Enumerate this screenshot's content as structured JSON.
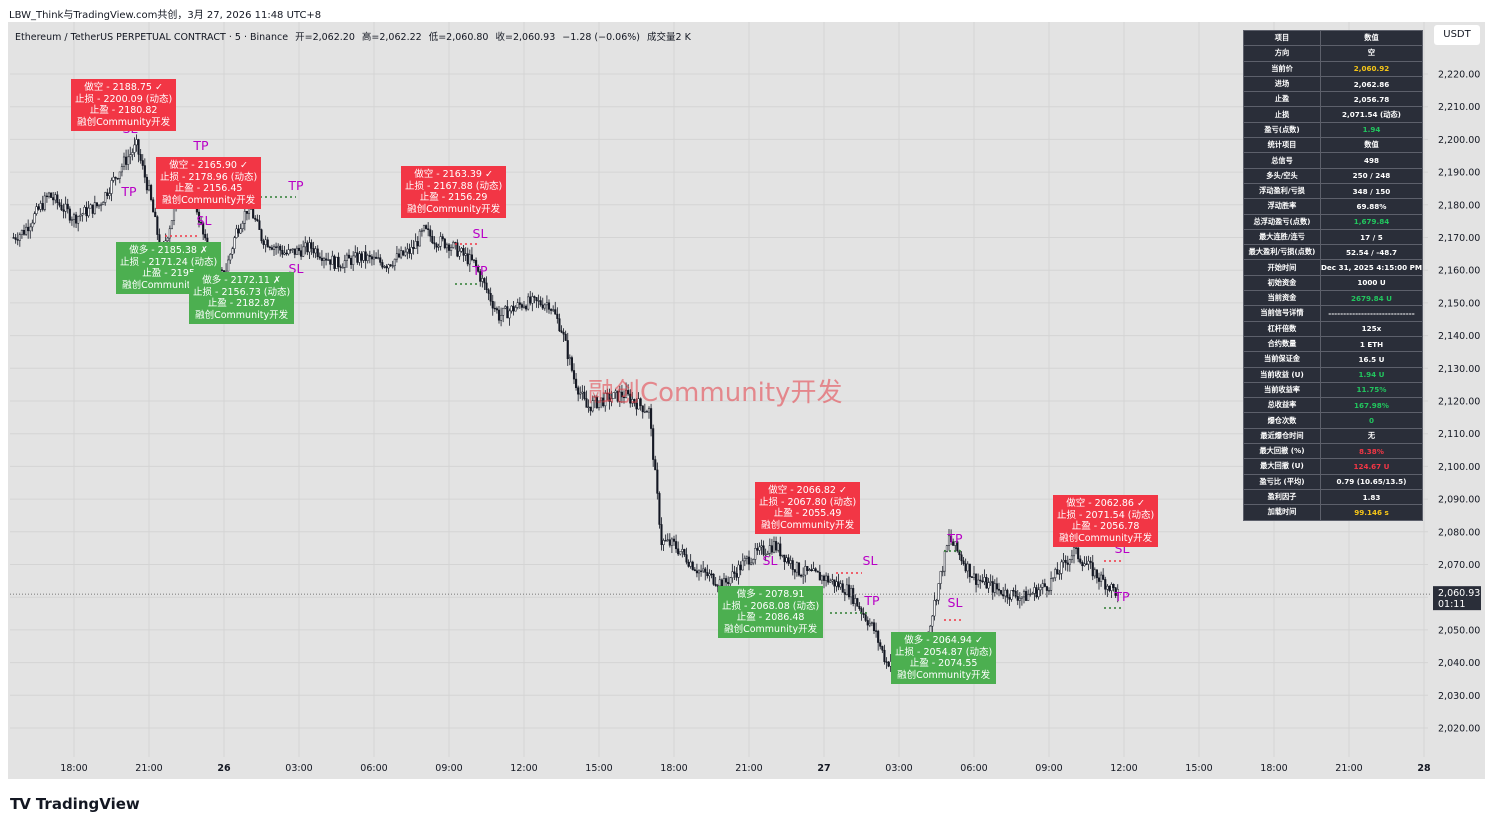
{
  "header": {
    "source_line": "LBW_Think与TradingView.com共创，3月 27, 2026 11:48 UTC+8"
  },
  "symbol": {
    "name": "Ethereum / TetherUS PERPETUAL CONTRACT · 5 · Binance",
    "open": "开=2,062.20",
    "high": "高=2,062.22",
    "low": "低=2,060.80",
    "close": "收=2,060.93",
    "change": "−1.28 (−0.06%)",
    "volume": "成交量2 K"
  },
  "currency_button": "USDT",
  "watermark": "融创Community开发",
  "brand": {
    "name": "TradingView",
    "logo": "TV"
  },
  "colors": {
    "up": "#089981",
    "down": "#f23645",
    "long_box": "#4caf50",
    "short_box": "#f23645",
    "tp_sl": "#b800c6"
  },
  "stats_table": [
    [
      "项目",
      "数值",
      ""
    ],
    [
      "方向",
      "空",
      ""
    ],
    [
      "当前价",
      "2,060.92",
      "#f5c518"
    ],
    [
      "进场",
      "2,062.86",
      ""
    ],
    [
      "止盈",
      "2,056.78",
      ""
    ],
    [
      "止损",
      "2,071.54 (动态)",
      ""
    ],
    [
      "盈亏(点数)",
      "1.94",
      "#22c55e"
    ],
    [
      "统计项目",
      "数值",
      ""
    ],
    [
      "总信号",
      "498",
      ""
    ],
    [
      "多头/空头",
      "250 / 248",
      ""
    ],
    [
      "浮动盈利/亏损",
      "348 / 150",
      ""
    ],
    [
      "浮动胜率",
      "69.88%",
      ""
    ],
    [
      "总浮动盈亏(点数)",
      "1,679.84",
      "#22c55e"
    ],
    [
      "最大连胜/连亏",
      "17 / 5",
      ""
    ],
    [
      "最大盈利/亏损(点数)",
      "52.54 / -48.7",
      ""
    ],
    [
      "开始时间",
      "Dec 31, 2025 4:15:00 PM",
      ""
    ],
    [
      "初始资金",
      "1000 U",
      ""
    ],
    [
      "当前资金",
      "2679.84 U",
      "#22c55e"
    ],
    [
      "当前信号详情",
      "-----------------------------",
      ""
    ],
    [
      "杠杆倍数",
      "125x",
      ""
    ],
    [
      "合约数量",
      "1 ETH",
      ""
    ],
    [
      "当前保证金",
      "16.5 U",
      ""
    ],
    [
      "当前收益 (U)",
      "1.94 U",
      "#22c55e"
    ],
    [
      "当前收益率",
      "11.75%",
      "#22c55e"
    ],
    [
      "总收益率",
      "167.98%",
      "#22c55e"
    ],
    [
      "爆仓次数",
      "0",
      "#22c55e"
    ],
    [
      "最近爆仓时间",
      "无",
      ""
    ],
    [
      "最大回撤 (%)",
      "8.38%",
      "#f23645"
    ],
    [
      "最大回撤 (U)",
      "124.67 U",
      "#f23645"
    ],
    [
      "盈亏比 (平均)",
      "0.79 (10.65/13.5)",
      ""
    ],
    [
      "盈利因子",
      "1.83",
      ""
    ],
    [
      "加载时间",
      "99.146 s",
      "#f5c518"
    ]
  ],
  "trade_boxes": [
    {
      "type": "short",
      "lines": [
        "做空 - 2188.75 ✓",
        "止损 - 2200.09 (动态)",
        "止盈 - 2180.82",
        "融创Community开发"
      ]
    },
    {
      "type": "short",
      "lines": [
        "做空 - 2165.90 ✓",
        "止损 - 2178.96 (动态)",
        "止盈 - 2156.45",
        "融创Community开发"
      ]
    },
    {
      "type": "long",
      "lines": [
        "做多 - 2185.38 ✗",
        "止损 - 2171.24 (动态)",
        "止盈 - 2195",
        "融创Community开发"
      ]
    },
    {
      "type": "long",
      "lines": [
        "做多 - 2172.11 ✗",
        "止损 - 2156.73 (动态)",
        "止盈 - 2182.87",
        "融创Community开发"
      ]
    },
    {
      "type": "short",
      "lines": [
        "做空 - 2163.39 ✓",
        "止损 - 2167.88 (动态)",
        "止盈 - 2156.29",
        "融创Community开发"
      ]
    },
    {
      "type": "short",
      "lines": [
        "做空 - 2066.82 ✓",
        "止损 - 2067.80 (动态)",
        "止盈 - 2055.49",
        "融创Community开发"
      ]
    },
    {
      "type": "long",
      "lines": [
        "做多 - 2078.91",
        "止损 - 2068.08 (动态)",
        "止盈 - 2086.48",
        "融创Community开发"
      ]
    },
    {
      "type": "long",
      "lines": [
        "做多 - 2064.94 ✓",
        "止损 - 2054.87 (动态)",
        "止盈 - 2074.55",
        "融创Community开发"
      ]
    },
    {
      "type": "short",
      "lines": [
        "做空 - 2062.86 ✓",
        "止损 - 2071.54 (动态)",
        "止盈 - 2056.78",
        "融创Community开发"
      ]
    }
  ],
  "chart_data": {
    "type": "line",
    "title": "Ethereum / TetherUS PERPETUAL CONTRACT · 5 · Binance",
    "x_ticks": [
      "18:00",
      "21:00",
      "26",
      "03:00",
      "06:00",
      "09:00",
      "12:00",
      "15:00",
      "18:00",
      "21:00",
      "27",
      "03:00",
      "06:00",
      "09:00",
      "12:00",
      "15:00",
      "18:00",
      "21:00",
      "28"
    ],
    "y_ticks": [
      "2,220.00",
      "2,210.00",
      "2,200.00",
      "2,190.00",
      "2,180.00",
      "2,170.00",
      "2,160.00",
      "2,150.00",
      "2,140.00",
      "2,130.00",
      "2,120.00",
      "2,110.00",
      "2,100.00",
      "2,090.00",
      "2,080.00",
      "2,070.00",
      "2,060.00",
      "2,050.00",
      "2,040.00",
      "2,030.00",
      "2,020.00"
    ],
    "ylim": [
      2014,
      2226
    ],
    "last_price_label": "2,060.93",
    "countdown_label": "01:11",
    "markers_tp": "TP",
    "markers_sl": "SL",
    "price_path": [
      {
        "x": "25 15:35",
        "y": 2170
      },
      {
        "x": "25 16:00",
        "y": 2172
      },
      {
        "x": "25 17:00",
        "y": 2183
      },
      {
        "x": "25 18:00",
        "y": 2176
      },
      {
        "x": "25 19:00",
        "y": 2180
      },
      {
        "x": "25 20:00",
        "y": 2193
      },
      {
        "x": "25 20:30",
        "y": 2198
      },
      {
        "x": "25 21:00",
        "y": 2184
      },
      {
        "x": "25 21:30",
        "y": 2165
      },
      {
        "x": "25 22:00",
        "y": 2178
      },
      {
        "x": "25 22:30",
        "y": 2192
      },
      {
        "x": "25 23:00",
        "y": 2176
      },
      {
        "x": "25 23:30",
        "y": 2160
      },
      {
        "x": "26 00:00",
        "y": 2158
      },
      {
        "x": "26 00:30",
        "y": 2172
      },
      {
        "x": "26 01:00",
        "y": 2180
      },
      {
        "x": "26 01:30",
        "y": 2170
      },
      {
        "x": "26 02:30",
        "y": 2165
      },
      {
        "x": "26 03:30",
        "y": 2167
      },
      {
        "x": "26 04:30",
        "y": 2162
      },
      {
        "x": "26 05:30",
        "y": 2164
      },
      {
        "x": "26 06:30",
        "y": 2162
      },
      {
        "x": "26 07:30",
        "y": 2166
      },
      {
        "x": "26 08:00",
        "y": 2172
      },
      {
        "x": "26 08:30",
        "y": 2169
      },
      {
        "x": "26 09:00",
        "y": 2168
      },
      {
        "x": "26 10:00",
        "y": 2162
      },
      {
        "x": "26 11:00",
        "y": 2146
      },
      {
        "x": "26 12:00",
        "y": 2150
      },
      {
        "x": "26 13:00",
        "y": 2150
      },
      {
        "x": "26 13:30",
        "y": 2142
      },
      {
        "x": "26 14:00",
        "y": 2127
      },
      {
        "x": "26 14:30",
        "y": 2118
      },
      {
        "x": "26 15:00",
        "y": 2120
      },
      {
        "x": "26 16:00",
        "y": 2122
      },
      {
        "x": "26 17:00",
        "y": 2117
      },
      {
        "x": "26 17:30",
        "y": 2077
      },
      {
        "x": "26 18:00",
        "y": 2076
      },
      {
        "x": "26 19:00",
        "y": 2068
      },
      {
        "x": "26 20:00",
        "y": 2064
      },
      {
        "x": "26 21:00",
        "y": 2072
      },
      {
        "x": "26 22:00",
        "y": 2076
      },
      {
        "x": "26 23:00",
        "y": 2068
      },
      {
        "x": "27 00:00",
        "y": 2066
      },
      {
        "x": "27 01:00",
        "y": 2062
      },
      {
        "x": "27 02:00",
        "y": 2050
      },
      {
        "x": "27 02:30",
        "y": 2040
      },
      {
        "x": "27 03:00",
        "y": 2042
      },
      {
        "x": "27 04:00",
        "y": 2044
      },
      {
        "x": "27 05:00",
        "y": 2078
      },
      {
        "x": "27 06:00",
        "y": 2066
      },
      {
        "x": "27 07:00",
        "y": 2062
      },
      {
        "x": "27 08:00",
        "y": 2060
      },
      {
        "x": "27 09:00",
        "y": 2064
      },
      {
        "x": "27 10:00",
        "y": 2074
      },
      {
        "x": "27 11:00",
        "y": 2066
      },
      {
        "x": "27 11:48",
        "y": 2060.93
      }
    ]
  }
}
